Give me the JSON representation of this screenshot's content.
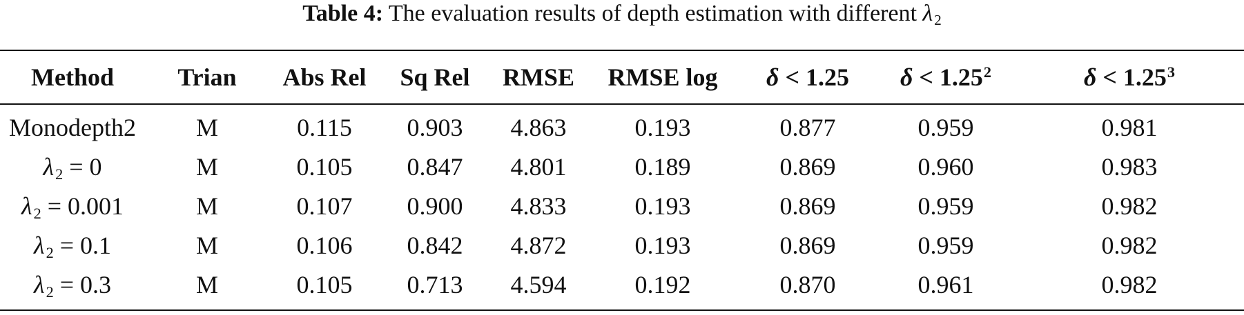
{
  "caption": {
    "label": "Table 4:",
    "text": "The evaluation results of depth estimation with different",
    "symbol": "λ",
    "subscript": "2"
  },
  "table": {
    "headers": [
      {
        "text": "Method"
      },
      {
        "text": "Trian"
      },
      {
        "text": "Abs Rel"
      },
      {
        "text": "Sq Rel"
      },
      {
        "text": "RMSE"
      },
      {
        "text": "RMSE log"
      },
      {
        "delta": "δ",
        "rest": " < 1.25"
      },
      {
        "delta": "δ",
        "rest": " < 1.25",
        "sup": "2"
      },
      {
        "delta": "δ",
        "rest": " < 1.25",
        "sup": "3"
      }
    ],
    "rows": [
      {
        "method": "Monodepth2",
        "trian": "M",
        "abs_rel": "0.115",
        "sq_rel": "0.903",
        "rmse": "4.863",
        "rmse_log": "0.193",
        "d1": "0.877",
        "d2": "0.959",
        "d3": "0.981"
      },
      {
        "method_symbol": "λ",
        "method_sub": "2",
        "method_value": " = 0",
        "trian": "M",
        "abs_rel": "0.105",
        "sq_rel": "0.847",
        "rmse": "4.801",
        "rmse_log": "0.189",
        "d1": "0.869",
        "d2": "0.960",
        "d3": "0.983"
      },
      {
        "method_symbol": "λ",
        "method_sub": "2",
        "method_value": " = 0.001",
        "trian": "M",
        "abs_rel": "0.107",
        "sq_rel": "0.900",
        "rmse": "4.833",
        "rmse_log": "0.193",
        "d1": "0.869",
        "d2": "0.959",
        "d3": "0.982"
      },
      {
        "method_symbol": "λ",
        "method_sub": "2",
        "method_value": " = 0.1",
        "trian": "M",
        "abs_rel": "0.106",
        "sq_rel": "0.842",
        "rmse": "4.872",
        "rmse_log": "0.193",
        "d1": "0.869",
        "d2": "0.959",
        "d3": "0.982"
      },
      {
        "method_symbol": "λ",
        "method_sub": "2",
        "method_value": " = 0.3",
        "trian": "M",
        "abs_rel": "0.105",
        "sq_rel": "0.713",
        "rmse": "4.594",
        "rmse_log": "0.192",
        "d1": "0.870",
        "d2": "0.961",
        "d3": "0.982"
      }
    ]
  }
}
